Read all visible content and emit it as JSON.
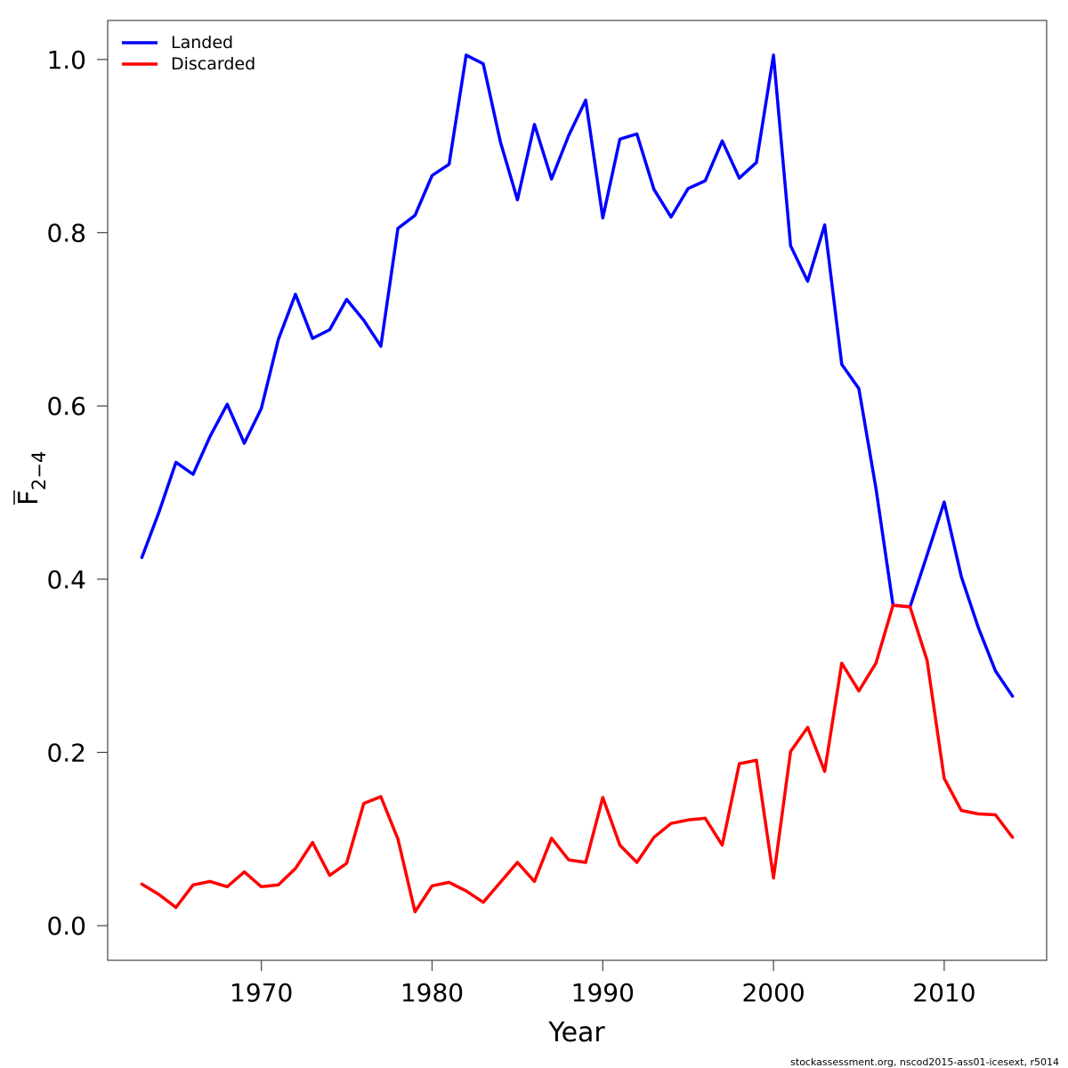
{
  "chart_data": {
    "type": "line",
    "title": "",
    "xlabel": "Year",
    "ylabel": {
      "main": "F",
      "subscript": "2−4",
      "overline": true
    },
    "xlim": [
      1961,
      2016
    ],
    "ylim": [
      -0.04,
      1.045
    ],
    "x_ticks": [
      1970,
      1980,
      1990,
      2000,
      2010
    ],
    "y_ticks": [
      0.0,
      0.2,
      0.4,
      0.6,
      0.8,
      1.0
    ],
    "y_tick_labels": [
      "0.0",
      "0.2",
      "0.4",
      "0.6",
      "0.8",
      "1.0"
    ],
    "grid": false,
    "legend_position": "top-left",
    "x": [
      1963,
      1964,
      1965,
      1966,
      1967,
      1968,
      1969,
      1970,
      1971,
      1972,
      1973,
      1974,
      1975,
      1976,
      1977,
      1978,
      1979,
      1980,
      1981,
      1982,
      1983,
      1984,
      1985,
      1986,
      1987,
      1988,
      1989,
      1990,
      1991,
      1992,
      1993,
      1994,
      1995,
      1996,
      1997,
      1998,
      1999,
      2000,
      2001,
      2002,
      2003,
      2004,
      2005,
      2006,
      2007,
      2008,
      2009,
      2010,
      2011,
      2012,
      2013,
      2014
    ],
    "series": [
      {
        "name": "Landed",
        "color": "#0000ff",
        "values": [
          0.425,
          0.477,
          0.535,
          0.521,
          0.565,
          0.602,
          0.557,
          0.597,
          0.677,
          0.729,
          0.678,
          0.688,
          0.723,
          0.699,
          0.669,
          0.805,
          0.82,
          0.866,
          0.879,
          1.005,
          0.995,
          0.905,
          0.838,
          0.925,
          0.862,
          0.912,
          0.953,
          0.817,
          0.908,
          0.914,
          0.85,
          0.818,
          0.851,
          0.86,
          0.906,
          0.863,
          0.881,
          1.005,
          0.785,
          0.744,
          0.809,
          0.648,
          0.62,
          0.505,
          0.37,
          0.368,
          0.428,
          0.489,
          0.403,
          0.344,
          0.294,
          0.265
        ]
      },
      {
        "name": "Discarded",
        "color": "#ff0000",
        "values": [
          0.048,
          0.036,
          0.021,
          0.047,
          0.051,
          0.045,
          0.062,
          0.045,
          0.047,
          0.066,
          0.096,
          0.058,
          0.072,
          0.141,
          0.149,
          0.1,
          0.016,
          0.046,
          0.05,
          0.04,
          0.027,
          0.05,
          0.073,
          0.051,
          0.101,
          0.076,
          0.073,
          0.148,
          0.093,
          0.073,
          0.102,
          0.118,
          0.122,
          0.124,
          0.093,
          0.187,
          0.191,
          0.055,
          0.201,
          0.229,
          0.178,
          0.303,
          0.271,
          0.303,
          0.37,
          0.368,
          0.306,
          0.17,
          0.133,
          0.129,
          0.128,
          0.102
        ]
      }
    ]
  },
  "footer": "stockassessment.org, nscod2015-ass01-icesext, r5014"
}
